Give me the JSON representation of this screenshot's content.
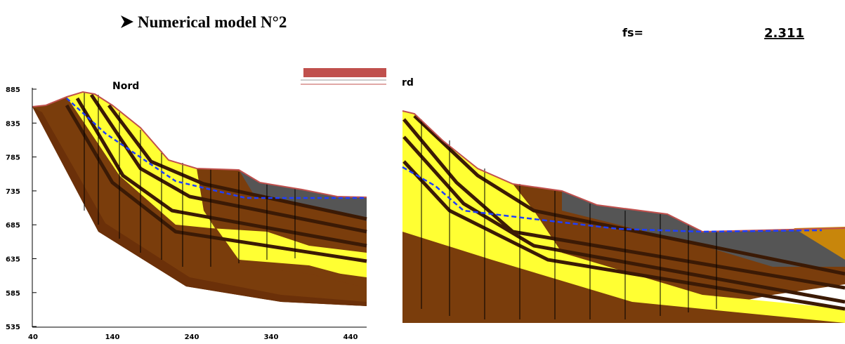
{
  "heading": "Numerical model N°2",
  "factor_label": "fs=",
  "factor_value": 2.311,
  "left_panel": {
    "label": "Nord",
    "y_ticks": [
      885,
      835,
      785,
      735,
      685,
      635,
      585,
      535
    ],
    "x_ticks": [
      40,
      140,
      240,
      340,
      440
    ]
  },
  "right_panel": {
    "label": "rd"
  }
}
